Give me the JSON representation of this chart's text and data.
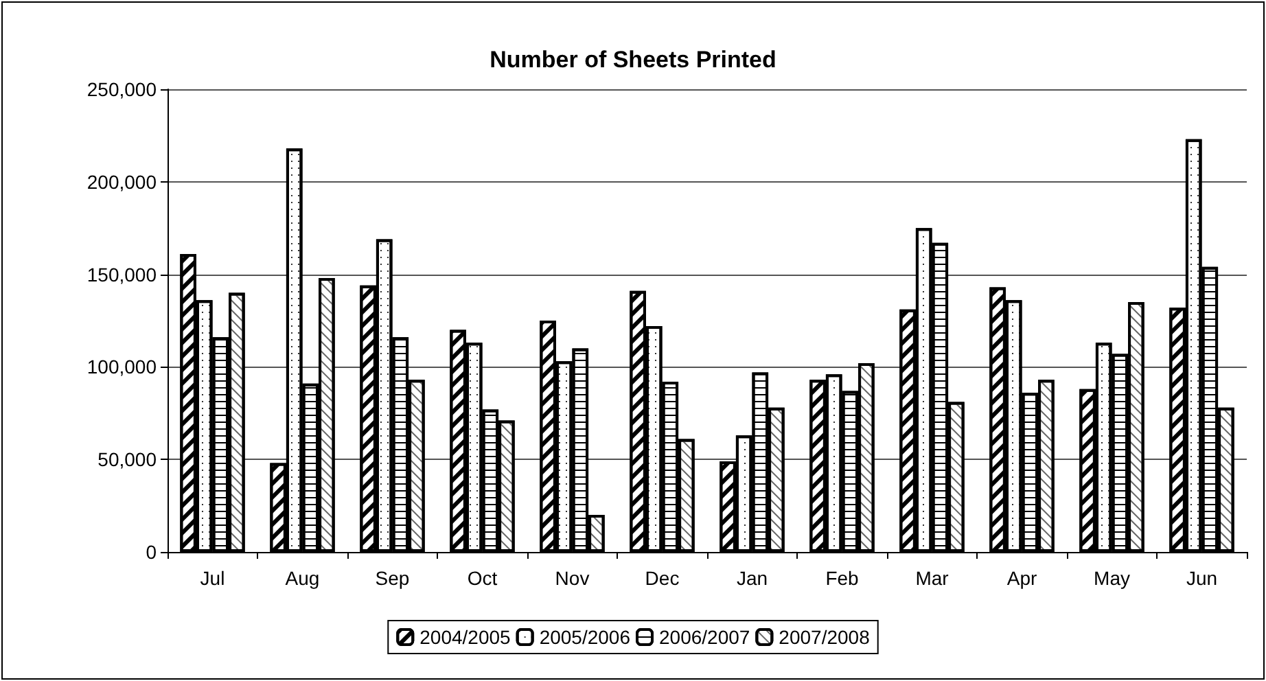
{
  "chart_data": {
    "type": "bar",
    "title": "Number of Sheets Printed",
    "categories": [
      "Jul",
      "Aug",
      "Sep",
      "Oct",
      "Nov",
      "Dec",
      "Jan",
      "Feb",
      "Mar",
      "Apr",
      "May",
      "Jun"
    ],
    "series": [
      {
        "name": "2004/2005",
        "color": "#ffffff",
        "values": [
          161000,
          48000,
          144000,
          120000,
          125000,
          141000,
          49000,
          93000,
          131000,
          143000,
          88000,
          132000
        ]
      },
      {
        "name": "2005/2006",
        "color": "#ffffff",
        "values": [
          136000,
          218000,
          169000,
          113000,
          103000,
          122000,
          63000,
          96000,
          175000,
          136000,
          113000,
          223000
        ]
      },
      {
        "name": "2006/2007",
        "color": "#ffffff",
        "values": [
          116000,
          91000,
          116000,
          77000,
          110000,
          92000,
          97000,
          87000,
          167000,
          86000,
          107000,
          154000
        ]
      },
      {
        "name": "2007/2008",
        "color": "#ffffff",
        "values": [
          140000,
          148000,
          93000,
          71000,
          20000,
          61000,
          78000,
          102000,
          81000,
          93000,
          135000,
          78000
        ]
      }
    ],
    "ylim": [
      0,
      250000
    ],
    "yticks": [
      0,
      {
        "value": 50000,
        "label": "50,000"
      },
      {
        "value": 100000,
        "label": "100,000"
      },
      {
        "value": 150000,
        "label": "150,000"
      },
      {
        "value": 200000,
        "label": "200,000"
      },
      {
        "value": 250000,
        "label": "250,000"
      }
    ],
    "grid": "y",
    "legend": "bottom"
  }
}
